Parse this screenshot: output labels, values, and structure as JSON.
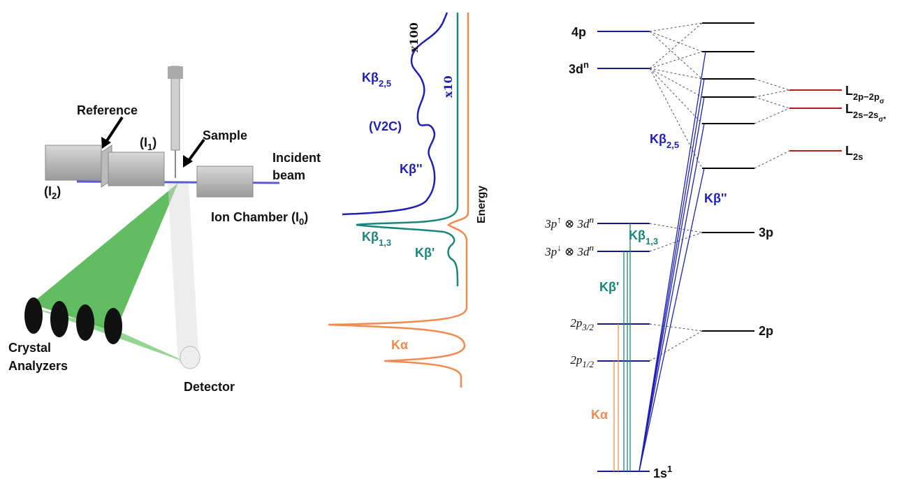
{
  "setup": {
    "reference": "Reference",
    "i1": {
      "main": "(I",
      "sub": "1",
      "tail": ")"
    },
    "sample": "Sample",
    "incident_beam": [
      "Incident",
      "beam"
    ],
    "i2": {
      "main": "(I",
      "sub": "2",
      "tail": ")"
    },
    "ion_chamber": {
      "main": "Ion Chamber (I",
      "sub": "0",
      "tail": ")"
    },
    "crystal_analyzers": [
      "Crystal",
      "Analyzers"
    ],
    "detector": "Detector"
  },
  "spectrum": {
    "x100": "x100",
    "x10": "x10",
    "kb25": {
      "main": "Kβ",
      "sub": "2,5"
    },
    "v2c": "(V2C)",
    "kb_dprime": "Kβ''",
    "kb13": {
      "main": "Kβ",
      "sub": "1,3"
    },
    "kb_prime": "Kβ'",
    "ka": "Kα",
    "axis_label": "Energy"
  },
  "levels": {
    "p4": "4p",
    "d3": {
      "main": "3d",
      "sup": "n"
    },
    "p3_up": {
      "a": "3p",
      "sup1": "↑",
      "b": " ⊗ 3d",
      "sup2": "n"
    },
    "p3_down": {
      "a": "3p",
      "sup1": "↓",
      "b": " ⊗ 3d",
      "sup2": "n"
    },
    "p3_2": {
      "main": "2p",
      "sub": "3/2"
    },
    "p1_2": {
      "main": "2p",
      "sub": "1/2"
    },
    "s1": {
      "main": "1s",
      "sup": "1"
    },
    "p3_mo": "3p",
    "p2_mo": "2p",
    "l2p": {
      "main": "L",
      "sub": "2p−2p",
      "subsub": "σ"
    },
    "l2s_pair": {
      "main": "L",
      "sub": "2s−2s",
      "subsub": "σ*"
    },
    "l2s": {
      "main": "L",
      "sub": "2s"
    }
  },
  "transitions": {
    "kb25": {
      "main": "Kβ",
      "sub": "2,5"
    },
    "kb_dprime": "Kβ''",
    "kb13": {
      "main": "Kβ",
      "sub": "1,3"
    },
    "kb_prime": "Kβ'",
    "ka": "Kα"
  }
}
